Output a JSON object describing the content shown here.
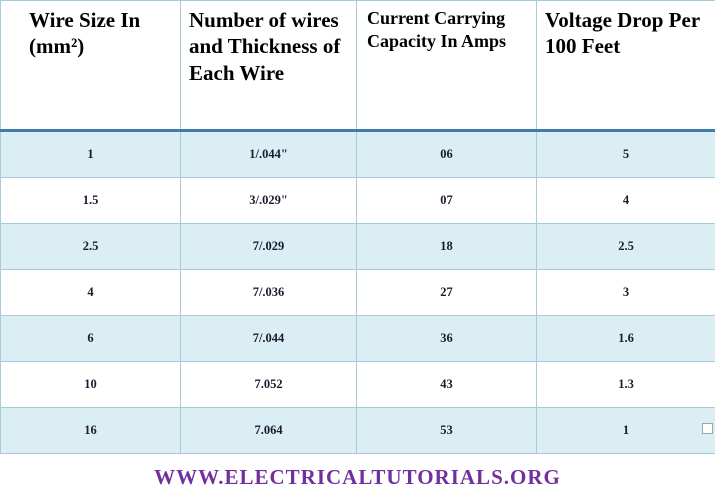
{
  "table": {
    "headers": [
      "Wire Size In (mm²)",
      "Number  of wires and Thickness of Each Wire",
      "Current Carrying Capacity In Amps",
      "Voltage Drop Per 100 Feet"
    ],
    "rows": [
      [
        "1",
        "1/.044\"",
        "06",
        "5"
      ],
      [
        "1.5",
        "3/.029\"",
        "07",
        "4"
      ],
      [
        "2.5",
        "7/.029",
        "18",
        "2.5"
      ],
      [
        "4",
        "7/.036",
        "27",
        "3"
      ],
      [
        "6",
        "7/.044",
        "36",
        "1.6"
      ],
      [
        "10",
        "7.052",
        "43",
        "1.3"
      ],
      [
        "16",
        "7.064",
        "53",
        "1"
      ]
    ]
  },
  "footer": {
    "website": "WWW.ELECTRICALTUTORIALS.ORG"
  },
  "colors": {
    "row_alt": "#daeef3",
    "cell_border": "#a9c9dd",
    "header_rule": "#417ca6",
    "footer_text": "#7030a0"
  }
}
